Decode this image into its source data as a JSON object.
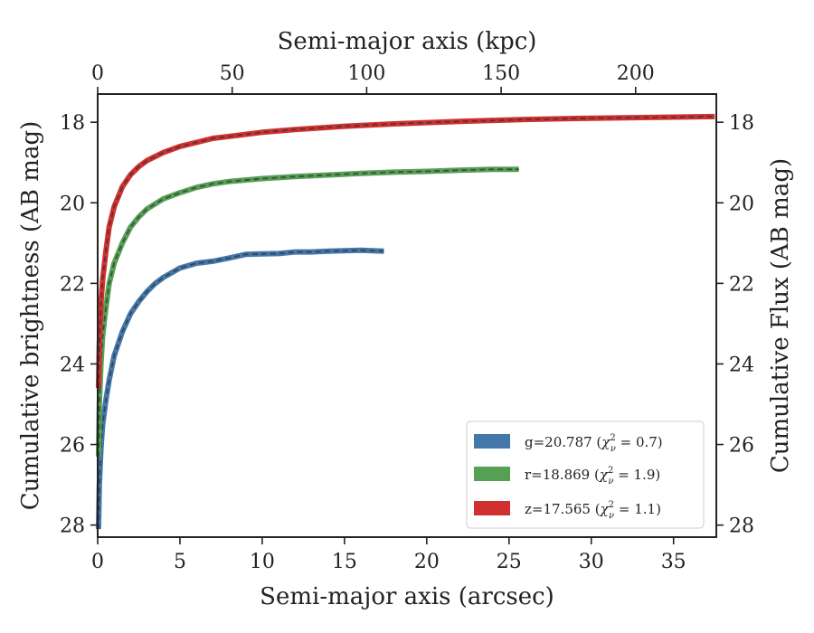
{
  "chart_data": {
    "type": "line",
    "xlabel": "Semi-major axis (arcsec)",
    "ylabel": "Cumulative brightness (AB mag)",
    "top_xlabel": "Semi-major axis (kpc)",
    "right_ylabel": "Cumulative Flux (AB mag)",
    "xlim": [
      0,
      37.6
    ],
    "ylim": [
      28.3,
      17.3
    ],
    "y_inverted": true,
    "top_xlim": [
      0,
      230
    ],
    "x_ticks": [
      "0",
      "5",
      "10",
      "15",
      "20",
      "25",
      "30",
      "35"
    ],
    "y_ticks": [
      "18",
      "20",
      "22",
      "24",
      "26",
      "28"
    ],
    "top_x_ticks": [
      "0",
      "50",
      "100",
      "150",
      "200"
    ],
    "right_y_ticks": [
      "18",
      "20",
      "22",
      "24",
      "26",
      "28"
    ],
    "grid": false,
    "legend_position": "lower-right",
    "series": [
      {
        "name": "g=20.787 (χ²ν = 0.7)",
        "legend_main": "g=20.787 (",
        "color": "#4477aa",
        "x": [
          0.05,
          0.1,
          0.2,
          0.3,
          0.5,
          0.7,
          1.0,
          1.5,
          2.0,
          2.5,
          3,
          3.5,
          4,
          5,
          6,
          7,
          8,
          9,
          10,
          11,
          12,
          13,
          14,
          15,
          16,
          17.4
        ],
        "y": [
          28.1,
          27.0,
          26.1,
          25.5,
          24.9,
          24.4,
          23.8,
          23.2,
          22.75,
          22.45,
          22.2,
          22.0,
          21.85,
          21.62,
          21.5,
          21.45,
          21.37,
          21.28,
          21.27,
          21.26,
          21.22,
          21.22,
          21.2,
          21.19,
          21.18,
          21.2
        ]
      },
      {
        "name": "r=18.869 (χ²ν = 1.9)",
        "legend_main": "r=18.869 (",
        "color": "#55a055",
        "x": [
          0.05,
          0.1,
          0.2,
          0.3,
          0.5,
          0.7,
          1.0,
          1.5,
          2.0,
          2.5,
          3,
          4,
          5,
          6,
          7,
          8,
          10,
          12,
          14,
          16,
          18,
          20,
          22,
          24,
          25.6
        ],
        "y": [
          26.3,
          25.0,
          24.0,
          23.3,
          22.6,
          22.0,
          21.5,
          21.0,
          20.6,
          20.35,
          20.15,
          19.9,
          19.75,
          19.62,
          19.53,
          19.47,
          19.4,
          19.35,
          19.31,
          19.27,
          19.24,
          19.22,
          19.19,
          19.17,
          19.17
        ]
      },
      {
        "name": "z=17.565 (χ²ν = 1.1)",
        "legend_main": "z=17.565 (",
        "color": "#d03030",
        "x": [
          0.05,
          0.1,
          0.2,
          0.3,
          0.5,
          0.7,
          1.0,
          1.5,
          2.0,
          2.5,
          3,
          4,
          5,
          6,
          7,
          8,
          10,
          12,
          15,
          18,
          22,
          26,
          30,
          34,
          37.5
        ],
        "y": [
          24.6,
          23.5,
          22.5,
          21.9,
          21.2,
          20.6,
          20.1,
          19.6,
          19.3,
          19.1,
          18.95,
          18.75,
          18.6,
          18.5,
          18.4,
          18.35,
          18.25,
          18.18,
          18.1,
          18.04,
          17.98,
          17.93,
          17.9,
          17.88,
          17.86
        ]
      }
    ]
  }
}
